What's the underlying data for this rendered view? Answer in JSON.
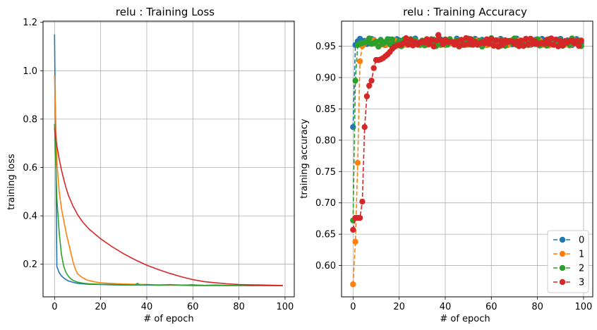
{
  "chart_data": [
    {
      "type": "line",
      "title": "relu : Training Loss",
      "xlabel": "# of epoch",
      "ylabel": "training loss",
      "xlim": [
        -5,
        104
      ],
      "ylim": [
        0.065,
        1.205
      ],
      "xticks": [
        0,
        20,
        40,
        60,
        80,
        100
      ],
      "yticks": [
        0.2,
        0.4,
        0.6,
        0.8,
        1.0,
        1.2
      ],
      "ytick_labels": [
        "0.2",
        "0.4",
        "0.6",
        "0.8",
        "1.0",
        "1.2"
      ],
      "grid": true,
      "legend": "none",
      "series": [
        {
          "color": "#1f77b4",
          "x": [
            0,
            1,
            2,
            3,
            4,
            5,
            6,
            8,
            10,
            12,
            15,
            20,
            25,
            30,
            35,
            40,
            45,
            50,
            55,
            60,
            65,
            70,
            75,
            80,
            85,
            90,
            95,
            99
          ],
          "values": [
            1.15,
            0.19,
            0.165,
            0.152,
            0.143,
            0.136,
            0.131,
            0.125,
            0.121,
            0.119,
            0.117,
            0.116,
            0.115,
            0.114,
            0.114,
            0.114,
            0.113,
            0.113,
            0.113,
            0.112,
            0.112,
            0.112,
            0.112,
            0.112,
            0.111,
            0.111,
            0.111,
            0.111
          ]
        },
        {
          "color": "#ff7f0e",
          "x": [
            0,
            1,
            2,
            3,
            4,
            5,
            6,
            7,
            8,
            9,
            10,
            12,
            14,
            16,
            18,
            20,
            25,
            30,
            35,
            40,
            45,
            50,
            55,
            60,
            65,
            70,
            75,
            80,
            85,
            90,
            95,
            99
          ],
          "values": [
            0.98,
            0.62,
            0.5,
            0.43,
            0.38,
            0.33,
            0.29,
            0.25,
            0.21,
            0.18,
            0.16,
            0.145,
            0.135,
            0.13,
            0.126,
            0.123,
            0.12,
            0.118,
            0.117,
            0.116,
            0.115,
            0.115,
            0.114,
            0.114,
            0.113,
            0.113,
            0.113,
            0.112,
            0.112,
            0.112,
            0.112,
            0.112
          ]
        },
        {
          "color": "#2ca02c",
          "x": [
            0,
            1,
            2,
            3,
            4,
            5,
            6,
            7,
            8,
            10,
            12,
            15,
            20,
            25,
            30,
            35,
            36,
            37,
            40,
            45,
            50,
            55,
            60,
            65,
            70,
            75,
            80,
            85,
            90,
            95,
            99
          ],
          "values": [
            0.78,
            0.47,
            0.33,
            0.24,
            0.19,
            0.165,
            0.15,
            0.14,
            0.133,
            0.126,
            0.122,
            0.119,
            0.117,
            0.116,
            0.115,
            0.114,
            0.121,
            0.113,
            0.116,
            0.113,
            0.116,
            0.113,
            0.115,
            0.112,
            0.114,
            0.112,
            0.113,
            0.112,
            0.113,
            0.112,
            0.112
          ]
        },
        {
          "color": "#d62728",
          "x": [
            0,
            1,
            2,
            3,
            4,
            5,
            6,
            8,
            10,
            12,
            15,
            20,
            25,
            30,
            35,
            40,
            45,
            50,
            55,
            60,
            65,
            70,
            75,
            80,
            85,
            90,
            95,
            99
          ],
          "values": [
            0.765,
            0.69,
            0.635,
            0.59,
            0.55,
            0.515,
            0.485,
            0.44,
            0.405,
            0.377,
            0.345,
            0.305,
            0.272,
            0.243,
            0.218,
            0.196,
            0.178,
            0.162,
            0.148,
            0.136,
            0.128,
            0.123,
            0.119,
            0.116,
            0.115,
            0.114,
            0.113,
            0.112
          ]
        }
      ]
    },
    {
      "type": "line",
      "title": "relu : Training Accuracy",
      "xlabel": "# of epoch",
      "ylabel": "training accuracy",
      "xlim": [
        -5,
        104
      ],
      "ylim": [
        0.55,
        0.99
      ],
      "xticks": [
        0,
        20,
        40,
        60,
        80,
        100
      ],
      "yticks": [
        0.6,
        0.65,
        0.7,
        0.75,
        0.8,
        0.85,
        0.9,
        0.95
      ],
      "ytick_labels": [
        "0.60",
        "0.65",
        "0.70",
        "0.75",
        "0.80",
        "0.85",
        "0.90",
        "0.95"
      ],
      "grid": true,
      "legend": "lower-right",
      "legend_entries": [
        "0",
        "1",
        "2",
        "3"
      ],
      "series": [
        {
          "name": "0",
          "color": "#1f77b4",
          "head_x": [
            0,
            1,
            2,
            3
          ],
          "head_values": [
            0.821,
            0.952,
            0.958,
            0.962
          ],
          "tail_start": 4,
          "tail_end": 99,
          "tail_base": 0.957,
          "tail_amp": 0.004,
          "tail_freq": 1.7
        },
        {
          "name": "1",
          "color": "#ff7f0e",
          "head_x": [
            0,
            1,
            2,
            3,
            4,
            5,
            6,
            7
          ],
          "head_values": [
            0.57,
            0.638,
            0.764,
            0.926,
            0.95,
            0.955,
            0.958,
            0.96
          ],
          "tail_start": 8,
          "tail_end": 99,
          "tail_base": 0.955,
          "tail_amp": 0.004,
          "tail_freq": 2.1
        },
        {
          "name": "2",
          "color": "#2ca02c",
          "head_x": [
            0,
            1,
            2,
            3,
            4,
            5,
            6
          ],
          "head_values": [
            0.672,
            0.895,
            0.952,
            0.954,
            0.955,
            0.956,
            0.957
          ],
          "tail_start": 7,
          "tail_end": 99,
          "tail_base": 0.956,
          "tail_amp": 0.005,
          "tail_freq": 2.5
        },
        {
          "name": "3",
          "color": "#d62728",
          "head_x": [
            0,
            1,
            2,
            3,
            4,
            5,
            6,
            7,
            8,
            9,
            10,
            11,
            12,
            13,
            14,
            15,
            16,
            17,
            18,
            19,
            20,
            21,
            22
          ],
          "head_values": [
            0.657,
            0.676,
            0.676,
            0.676,
            0.702,
            0.821,
            0.87,
            0.887,
            0.895,
            0.915,
            0.928,
            0.928,
            0.929,
            0.931,
            0.934,
            0.937,
            0.941,
            0.946,
            0.949,
            0.951,
            0.952,
            0.953,
            0.955
          ],
          "tail_start": 23,
          "tail_end": 99,
          "tail_base": 0.956,
          "tail_amp": 0.005,
          "tail_freq": 2.9,
          "spikes_x": [
            37
          ],
          "spikes_values": [
            0.968
          ]
        }
      ]
    }
  ]
}
